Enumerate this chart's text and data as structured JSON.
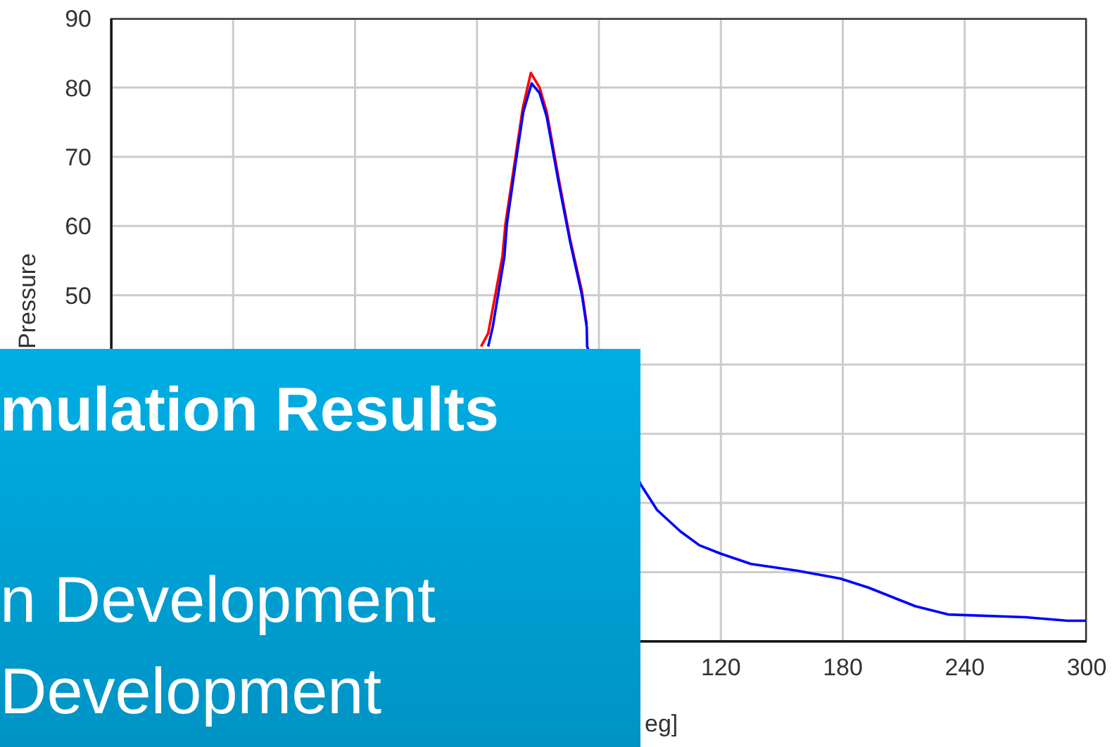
{
  "chart_data": {
    "type": "line",
    "ylabel": "Pressure",
    "xlabel": "eg]",
    "xlim": [
      -180,
      300
    ],
    "xticks": [
      {
        "value": -180,
        "label": null
      },
      {
        "value": -120,
        "label": null
      },
      {
        "value": -60,
        "label": null
      },
      {
        "value": 0,
        "label": null
      },
      {
        "value": 60,
        "label": null
      },
      120,
      180,
      240,
      300
    ],
    "ylim": [
      0,
      90
    ],
    "yticks": [
      {
        "value": 0,
        "label": null
      },
      {
        "value": 10,
        "label": null
      },
      {
        "value": 20,
        "label": null
      },
      {
        "value": 30,
        "label": null
      },
      {
        "value": 40,
        "label": null
      },
      50,
      60,
      70,
      80,
      90
    ],
    "grid": true,
    "series": [
      {
        "color": "#ff0000",
        "x": [
          2,
          5.5,
          12.5,
          14,
          18.8,
          22.5,
          26.5,
          30.8,
          34.3,
          40.1,
          45.9,
          51.6,
          54
        ],
        "values": [
          42.6,
          44.5,
          55.6,
          60.3,
          69.7,
          77,
          82.1,
          80,
          76.5,
          67,
          58,
          50.6,
          45.8
        ]
      },
      {
        "color": "#0000ff",
        "x": [
          5.5,
          7.8,
          13.5,
          14.7,
          19.3,
          22.8,
          26.9,
          30.8,
          34.3,
          40.1,
          45.9,
          51.6,
          54,
          54.2,
          80.5,
          88.6,
          100.1,
          109.4,
          119.8,
          134.8,
          157.9,
          178.7,
          192.5,
          215.6,
          231.8,
          269.9,
          290.7,
          300
        ],
        "values": [
          42.6,
          45.5,
          55.6,
          60.3,
          69.7,
          76.5,
          80.6,
          79.2,
          75.8,
          66.4,
          57.6,
          50.1,
          45.4,
          42.6,
          22.7,
          19,
          15.9,
          13.9,
          12.7,
          11.2,
          10.2,
          9.1,
          7.8,
          5.1,
          3.9,
          3.5,
          3,
          3
        ]
      }
    ],
    "annotations": [
      "mulation Results",
      "n Development",
      "Development"
    ]
  }
}
